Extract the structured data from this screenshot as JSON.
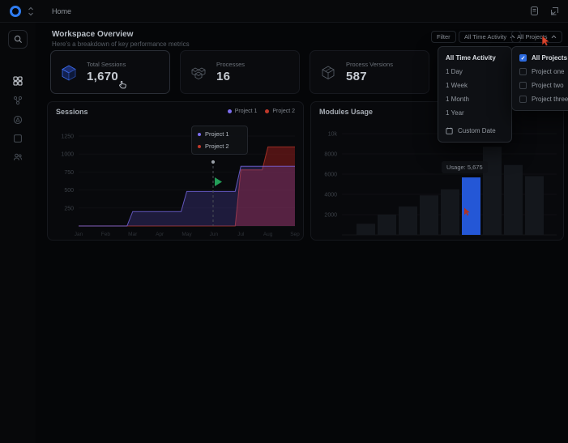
{
  "topbar": {
    "breadcrumb": "Home",
    "icons": [
      "logo",
      "sidebar-collapse-icon",
      "docs-icon",
      "open-panel-icon"
    ]
  },
  "sidebar": {
    "icons": [
      "search-icon",
      "dashboard-grid-icon",
      "workflow-icon",
      "globe-icon",
      "package-icon",
      "users-icon"
    ]
  },
  "header": {
    "title": "Workspace Overview",
    "subtitle": "Here's a breakdown of key performance metrics"
  },
  "filters": {
    "filter_label": "Filter",
    "time_value": "All Time Activity",
    "projects_value": "All Projects"
  },
  "stats": {
    "cards": [
      {
        "label": "Total Sessions",
        "value": "1,670",
        "icon": "sessions-cube-icon"
      },
      {
        "label": "Processes",
        "value": "16",
        "icon": "processes-cubes-icon"
      },
      {
        "label": "Process Versions",
        "value": "587",
        "icon": "versions-cube-icon"
      }
    ]
  },
  "time_dropdown": {
    "selected": "All Time Activity",
    "options": [
      "All Time Activity",
      "1 Day",
      "1 Week",
      "1 Month",
      "1 Year"
    ],
    "custom_option": "Custom Date"
  },
  "projects_dropdown": {
    "options": [
      {
        "label": "All Projects",
        "checked": true
      },
      {
        "label": "Project one",
        "checked": false
      },
      {
        "label": "Project two",
        "checked": false
      },
      {
        "label": "Project three",
        "checked": false
      }
    ]
  },
  "colors": {
    "accent_blue": "#2d6bdf",
    "bar_highlight": "#2457d6",
    "bar_default": "#14171c",
    "logo_blue": "#2e7cf0",
    "green_cursor": "#27ae60",
    "red_cursor": "#d8452e"
  },
  "chart_data": [
    {
      "type": "area",
      "title": "Sessions",
      "x": [
        "Jan",
        "Feb",
        "Mar",
        "Apr",
        "May",
        "Jun",
        "Jul",
        "Aug",
        "Sep"
      ],
      "series": [
        {
          "name": "Project 1",
          "color": "#7d6ef0",
          "fill": "rgba(109,92,231,0.22)",
          "values": [
            0,
            0,
            200,
            200,
            480,
            480,
            830,
            830,
            830
          ]
        },
        {
          "name": "Project 2",
          "color": "#c0392b",
          "fill": "rgba(140,28,28,0.55)",
          "values": [
            0,
            0,
            0,
            0,
            0,
            0,
            780,
            1100,
            1100
          ]
        }
      ],
      "yticks": [
        1250,
        1000,
        750,
        500,
        250
      ],
      "ylim": [
        0,
        1250
      ],
      "legend_position": "top-right",
      "tooltip_items": [
        "Project 1",
        "Project 2"
      ]
    },
    {
      "type": "bar",
      "title": "Modules Usage",
      "values": [
        1100,
        2000,
        2800,
        3900,
        4500,
        5675,
        8700,
        6900,
        5800
      ],
      "highlight_index": 5,
      "yticks": [
        10000,
        8000,
        6000,
        4000,
        2000
      ],
      "ytick_labels": [
        "10k",
        "8000",
        "6000",
        "4000",
        "2000"
      ],
      "ylim": [
        0,
        10000
      ],
      "tooltip": "Usage: 5,675"
    }
  ]
}
